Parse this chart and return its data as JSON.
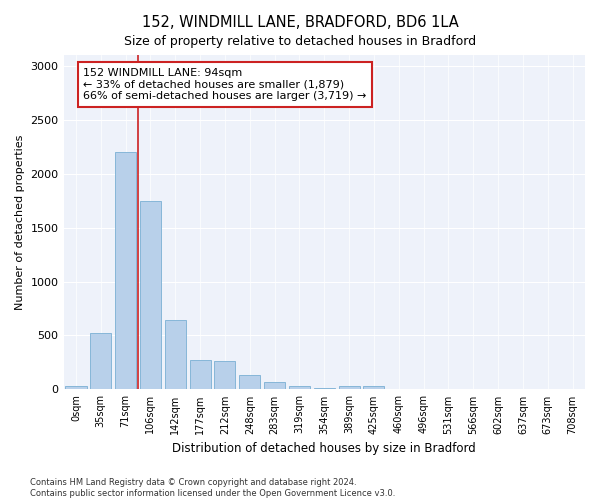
{
  "title1": "152, WINDMILL LANE, BRADFORD, BD6 1LA",
  "title2": "Size of property relative to detached houses in Bradford",
  "xlabel": "Distribution of detached houses by size in Bradford",
  "ylabel": "Number of detached properties",
  "categories": [
    "0sqm",
    "35sqm",
    "71sqm",
    "106sqm",
    "142sqm",
    "177sqm",
    "212sqm",
    "248sqm",
    "283sqm",
    "319sqm",
    "354sqm",
    "389sqm",
    "425sqm",
    "460sqm",
    "496sqm",
    "531sqm",
    "566sqm",
    "602sqm",
    "637sqm",
    "673sqm",
    "708sqm"
  ],
  "values": [
    30,
    520,
    2200,
    1750,
    640,
    270,
    265,
    130,
    70,
    35,
    10,
    30,
    30,
    5,
    5,
    0,
    0,
    0,
    0,
    0,
    0
  ],
  "bar_color": "#b8d0ea",
  "bar_edge_color": "#7aafd4",
  "vline_color": "#cc2222",
  "vline_pos": 2.5,
  "annotation_text": "152 WINDMILL LANE: 94sqm\n← 33% of detached houses are smaller (1,879)\n66% of semi-detached houses are larger (3,719) →",
  "annotation_box_facecolor": "#ffffff",
  "annotation_box_edgecolor": "#cc2222",
  "ylim": [
    0,
    3100
  ],
  "yticks": [
    0,
    500,
    1000,
    1500,
    2000,
    2500,
    3000
  ],
  "background_color": "#eef2fa",
  "footer_text": "Contains HM Land Registry data © Crown copyright and database right 2024.\nContains public sector information licensed under the Open Government Licence v3.0.",
  "title1_fontsize": 10.5,
  "title2_fontsize": 9,
  "annotation_fontsize": 8,
  "xlabel_fontsize": 8.5,
  "ylabel_fontsize": 8,
  "tick_fontsize": 7,
  "footer_fontsize": 6
}
